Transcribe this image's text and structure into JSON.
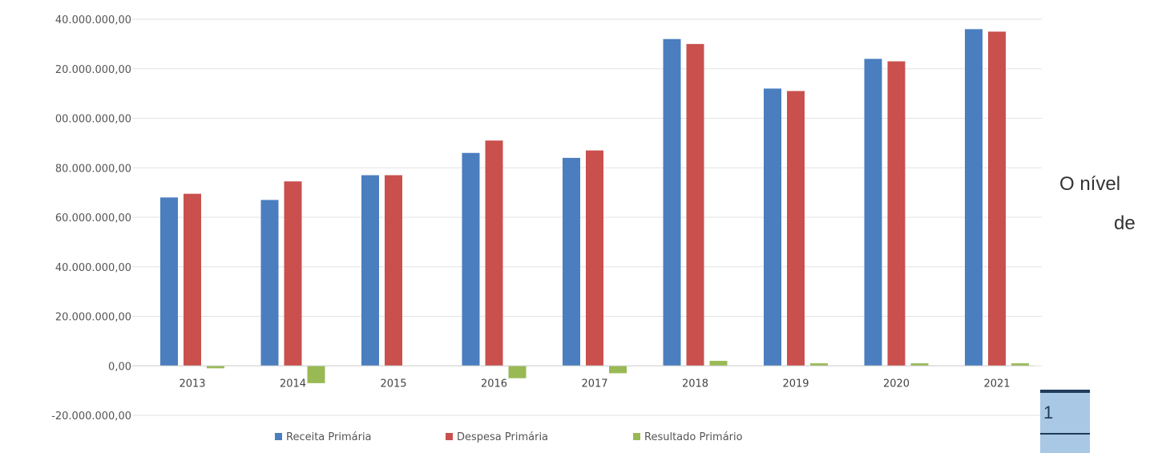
{
  "chart_data": {
    "type": "bar",
    "categories": [
      "2013",
      "2014",
      "2015",
      "2016",
      "2017",
      "2018",
      "2019",
      "2020",
      "2021"
    ],
    "series": [
      {
        "name": "Receita Primária",
        "color": "#4a7ebf",
        "values": [
          68000000,
          67000000,
          77000000,
          86000000,
          84000000,
          132000000,
          112000000,
          124000000,
          136000000
        ]
      },
      {
        "name": "Despesa Primária",
        "color": "#c9504d",
        "values": [
          69500000,
          74500000,
          77000000,
          91000000,
          87000000,
          130000000,
          111000000,
          123000000,
          135000000
        ]
      },
      {
        "name": "Resultado Primário",
        "color": "#98b954",
        "values": [
          -1000000,
          -7000000,
          0,
          -5000000,
          -3000000,
          2000000,
          1000000,
          1000000,
          1000000
        ]
      }
    ],
    "yticks": [
      "40.000.000,00",
      "20.000.000,00",
      "00.000.000,00",
      "80.000.000,00",
      "60.000.000,00",
      "40.000.000,00",
      "20.000.000,00",
      "0,00",
      "-20.000.000,00"
    ],
    "ylim": [
      -20000000,
      140000000
    ],
    "grid": true,
    "legend_position": "bottom"
  },
  "side_text": {
    "line1": "O nível",
    "line2": "de"
  },
  "page_number": "1"
}
